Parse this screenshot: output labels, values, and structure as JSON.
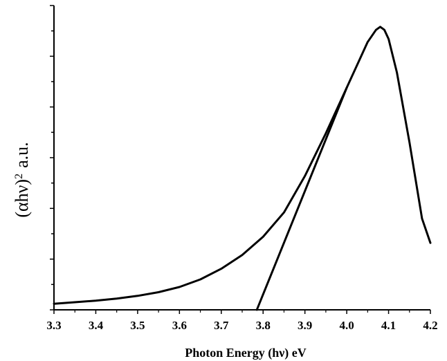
{
  "chart_data": {
    "type": "line",
    "title": "",
    "xlabel": "Photon Energy (hν) eV",
    "ylabel_base": "(αhν)",
    "ylabel_sup": "2",
    "ylabel_unit": "a.u.",
    "xlim": [
      3.3,
      4.2
    ],
    "ylim": [
      0,
      1
    ],
    "x_ticks": [
      "3.3",
      "3.4",
      "3.5",
      "3.6",
      "3.7",
      "3.8",
      "3.9",
      "4.0",
      "4.1",
      "4.2"
    ],
    "y_tick_labels_shown": false,
    "y_minor_tick_count": 12,
    "grid": false,
    "legend": "none",
    "series": [
      {
        "role": "absorption-curve",
        "x": [
          3.3,
          3.35,
          3.4,
          3.45,
          3.5,
          3.55,
          3.6,
          3.65,
          3.7,
          3.75,
          3.8,
          3.85,
          3.9,
          3.95,
          4.0,
          4.03,
          4.05,
          4.07,
          4.08,
          4.09,
          4.1,
          4.12,
          4.15,
          4.18,
          4.2
        ],
        "y": [
          0.02,
          0.025,
          0.03,
          0.037,
          0.046,
          0.058,
          0.075,
          0.1,
          0.135,
          0.18,
          0.24,
          0.32,
          0.44,
          0.58,
          0.73,
          0.82,
          0.88,
          0.92,
          0.93,
          0.92,
          0.89,
          0.78,
          0.55,
          0.3,
          0.22
        ]
      },
      {
        "role": "tauc-tangent-line",
        "x": [
          3.785,
          4.0
        ],
        "y": [
          0.0,
          0.73
        ]
      }
    ],
    "colors": {
      "curve": "#000000",
      "axes": "#000000",
      "background": "#ffffff"
    }
  }
}
